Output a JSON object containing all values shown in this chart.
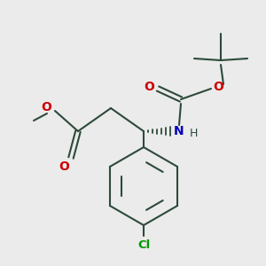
{
  "bg_color": "#ebebeb",
  "bond_color": "#2d4a3a",
  "oxygen_color": "#cc0000",
  "nitrogen_color": "#0000bb",
  "chlorine_color": "#009900",
  "line_width": 1.5,
  "figsize": [
    3.0,
    3.0
  ],
  "dpi": 100,
  "xlim": [
    0,
    300
  ],
  "ylim": [
    0,
    300
  ]
}
